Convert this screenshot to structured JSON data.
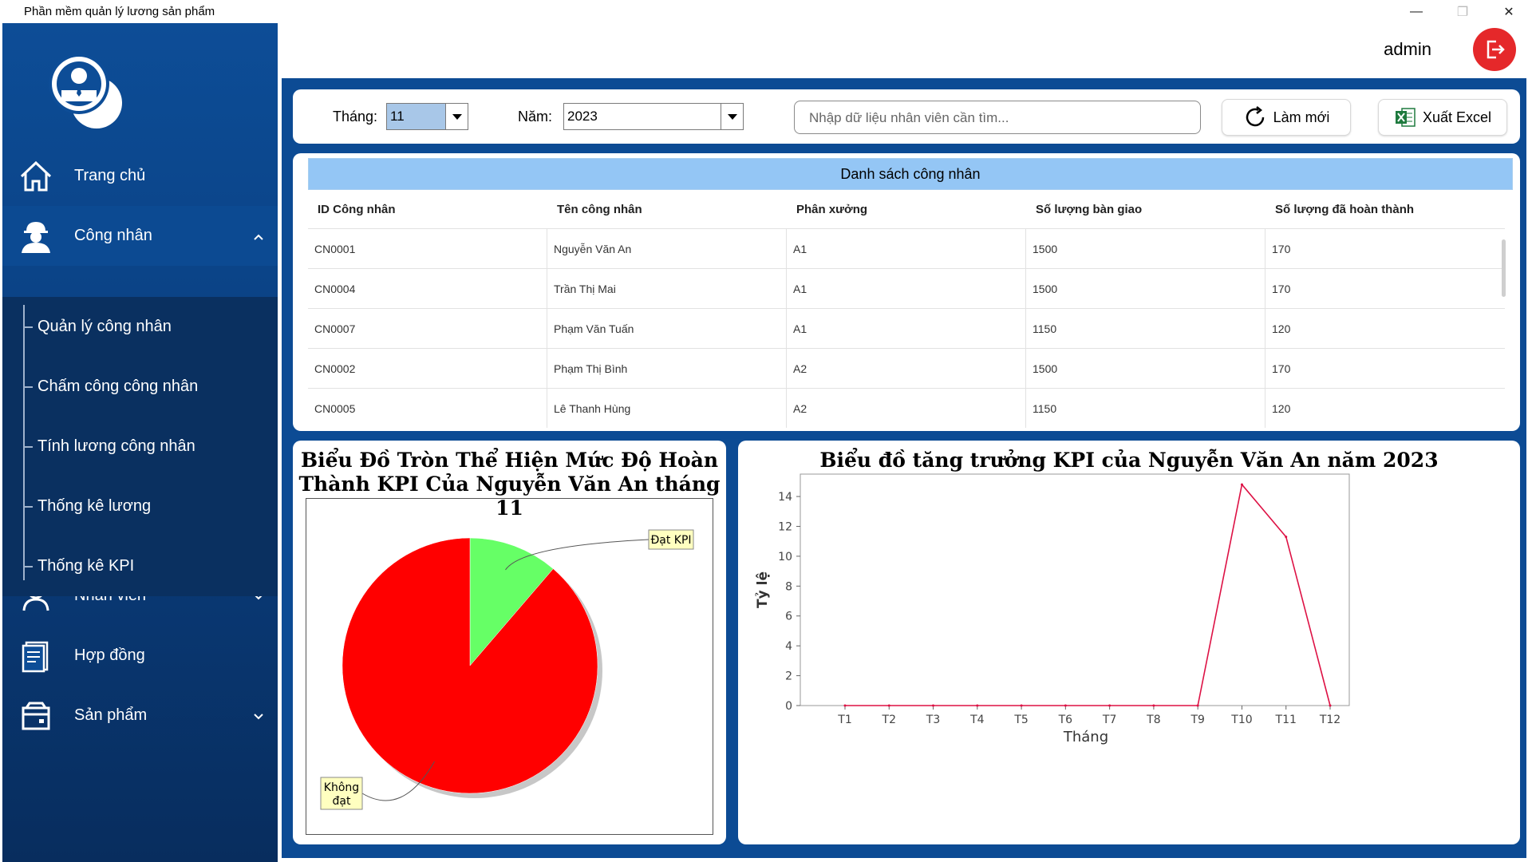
{
  "window": {
    "title": "Phần mềm quản lý lương sản phẩm"
  },
  "sidebar": {
    "items": [
      {
        "label": "Trang chủ",
        "icon": "home-icon"
      },
      {
        "label": "Công nhân",
        "icon": "worker-icon"
      },
      {
        "label": "Nhân viên",
        "icon": "user-icon"
      },
      {
        "label": "Hợp đồng",
        "icon": "contract-icon"
      },
      {
        "label": "Sản phẩm",
        "icon": "product-icon"
      }
    ],
    "submenu": [
      {
        "label": "Quản lý công nhân"
      },
      {
        "label": "Chấm công công nhân"
      },
      {
        "label": "Tính lương công nhân"
      },
      {
        "label": "Thống kê lương"
      },
      {
        "label": "Thống kê KPI"
      }
    ]
  },
  "header": {
    "user": "admin"
  },
  "filter": {
    "month_label": "Tháng:",
    "month_value": "11",
    "year_label": "Năm:",
    "year_value": "2023",
    "search_placeholder": "Nhập dữ liệu nhân viên cần tìm...",
    "refresh_label": "Làm mới",
    "export_label": "Xuất Excel"
  },
  "table": {
    "title": "Danh sách công nhân",
    "columns": [
      "ID Công nhân",
      "Tên công nhân",
      "Phân xưởng",
      "Số lượng bàn giao",
      "Số lượng đã hoàn thành"
    ],
    "rows": [
      [
        "CN0001",
        "Nguyễn Văn An",
        "A1",
        "1500",
        "170"
      ],
      [
        "CN0004",
        "Trần Thị Mai",
        "A1",
        "1500",
        "170"
      ],
      [
        "CN0007",
        "Phạm Văn Tuấn",
        "A1",
        "1150",
        "120"
      ],
      [
        "CN0002",
        "Phạm Thị Bình",
        "A2",
        "1500",
        "170"
      ],
      [
        "CN0005",
        "Lê Thanh Hùng",
        "A2",
        "1150",
        "120"
      ]
    ]
  },
  "chart_data": [
    {
      "type": "pie",
      "title_line1": "Biểu Đồ Tròn Thể Hiện Mức Độ Hoàn",
      "title_line2": "Thành KPI Của Nguyễn Văn An tháng 11",
      "slices": [
        {
          "label": "Đạt KPI",
          "value": 11.3,
          "color": "#66ff66"
        },
        {
          "label_line1": "Không",
          "label_line2": "đạt",
          "value": 88.7,
          "color": "#ff0000"
        }
      ]
    },
    {
      "type": "line",
      "title": "Biểu đồ tăng trưởng KPI của Nguyễn Văn An năm 2023",
      "xlabel": "Tháng",
      "ylabel": "Tỷ lệ",
      "categories": [
        "T1",
        "T2",
        "T3",
        "T4",
        "T5",
        "T6",
        "T7",
        "T8",
        "T9",
        "T10",
        "T11",
        "T12"
      ],
      "values": [
        0,
        0,
        0,
        0,
        0,
        0,
        0,
        0,
        0,
        14.8,
        11.3,
        0
      ],
      "yticks": [
        0,
        2,
        4,
        6,
        8,
        10,
        12,
        14
      ],
      "ylim": [
        0,
        15.5
      ],
      "color": "#dd1144"
    }
  ]
}
